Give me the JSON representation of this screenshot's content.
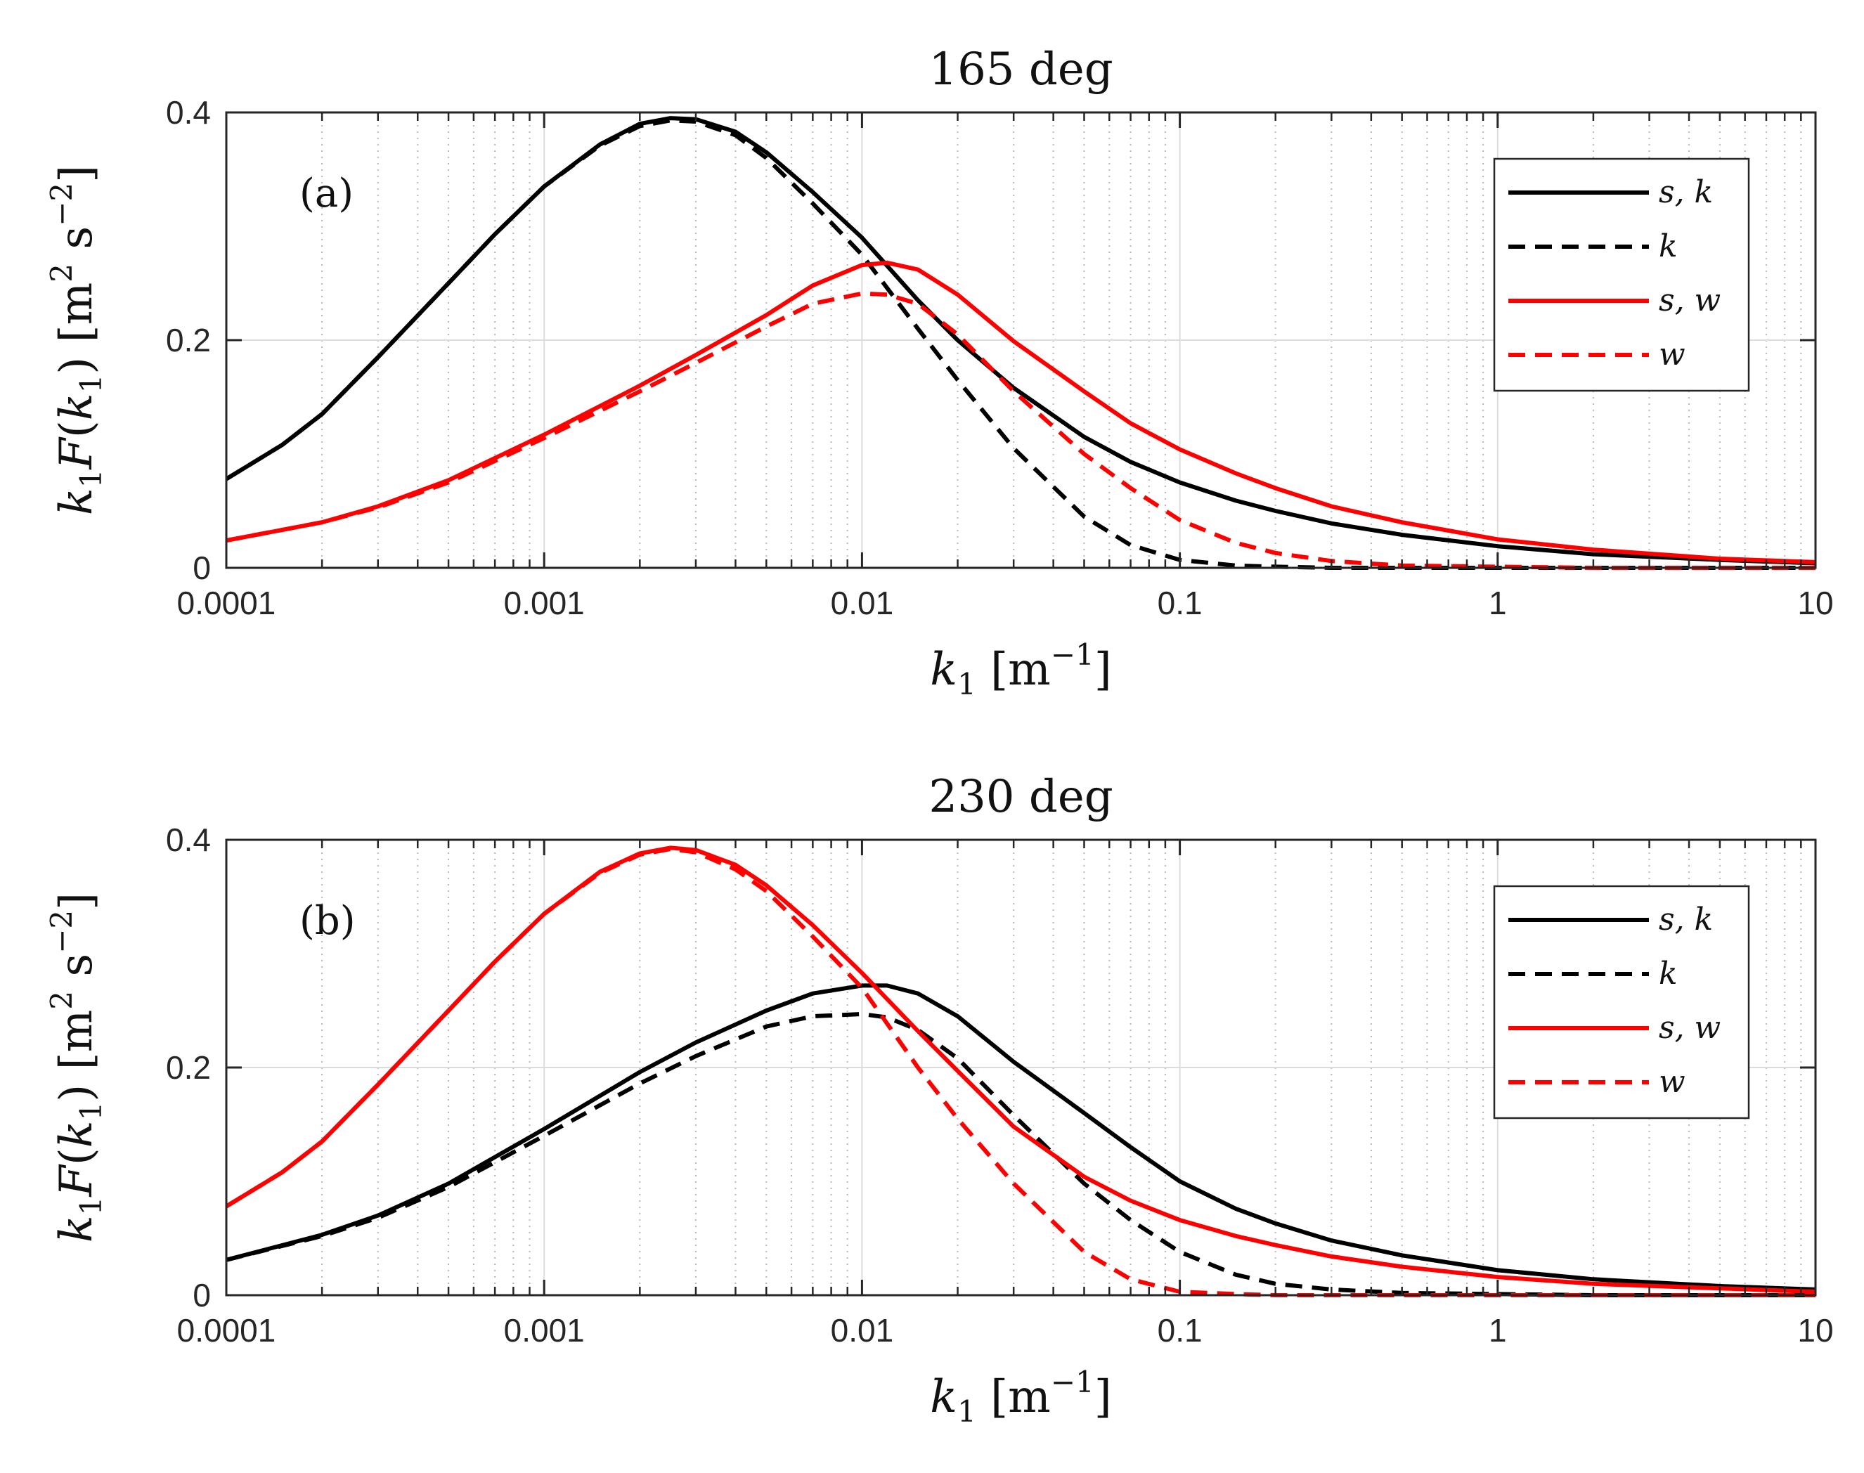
{
  "chart_data": [
    {
      "type": "line",
      "panel_label": "(a)",
      "title": "165 deg",
      "xlabel": "k1 [m^-1]",
      "ylabel": "k1 F(k1) [m^2 s^-2]",
      "xlabel_parts": {
        "var": "k",
        "sub": "1",
        "unit": "[m",
        "unit_exp": "−1",
        "close": "]"
      },
      "ylabel_parts": {
        "var1": "k",
        "sub1": "1",
        "func": "F(k",
        "sub2": "1",
        "close": ")",
        "unit": "[m",
        "exp1": "2",
        "unit2": "s",
        "exp2": "−2",
        "end": "]"
      },
      "xscale": "log",
      "xlim": [
        0.0001,
        10
      ],
      "ylim": [
        0,
        0.4
      ],
      "xticks": [
        0.0001,
        0.001,
        0.01,
        0.1,
        1,
        10
      ],
      "xtick_labels": [
        "0.0001",
        "0.001",
        "0.01",
        "0.1",
        "1",
        "10"
      ],
      "yticks": [
        0,
        0.2,
        0.4
      ],
      "ytick_labels": [
        "0",
        "0.2",
        "0.4"
      ],
      "grid": true,
      "legend_position": "top-right",
      "series": [
        {
          "name": "s, k",
          "color": "#000000",
          "style": "solid",
          "x": [
            0.0001,
            0.00015,
            0.0002,
            0.0003,
            0.0005,
            0.0007,
            0.001,
            0.0015,
            0.002,
            0.0025,
            0.003,
            0.004,
            0.005,
            0.007,
            0.01,
            0.015,
            0.02,
            0.03,
            0.05,
            0.07,
            0.1,
            0.15,
            0.2,
            0.3,
            0.5,
            1,
            2,
            5,
            10
          ],
          "y": [
            0.078,
            0.108,
            0.135,
            0.185,
            0.25,
            0.293,
            0.335,
            0.372,
            0.39,
            0.395,
            0.394,
            0.383,
            0.365,
            0.33,
            0.29,
            0.235,
            0.2,
            0.158,
            0.115,
            0.093,
            0.075,
            0.059,
            0.05,
            0.039,
            0.029,
            0.019,
            0.012,
            0.007,
            0.004
          ]
        },
        {
          "name": "k",
          "color": "#000000",
          "style": "dashed",
          "x": [
            0.0001,
            0.00015,
            0.0002,
            0.0003,
            0.0005,
            0.0007,
            0.001,
            0.0015,
            0.002,
            0.0025,
            0.003,
            0.004,
            0.005,
            0.007,
            0.01,
            0.015,
            0.02,
            0.03,
            0.05,
            0.07,
            0.1,
            0.15,
            0.2,
            0.3,
            0.5,
            1,
            2,
            5,
            10
          ],
          "y": [
            0.078,
            0.108,
            0.135,
            0.185,
            0.25,
            0.293,
            0.335,
            0.371,
            0.388,
            0.393,
            0.392,
            0.38,
            0.36,
            0.32,
            0.275,
            0.21,
            0.165,
            0.105,
            0.045,
            0.02,
            0.007,
            0.002,
            0.001,
            0,
            0,
            0,
            0,
            0,
            0
          ]
        },
        {
          "name": "s, w",
          "color": "#ff0000",
          "style": "solid",
          "x": [
            0.0001,
            0.0002,
            0.0003,
            0.0005,
            0.001,
            0.002,
            0.003,
            0.005,
            0.007,
            0.01,
            0.012,
            0.015,
            0.02,
            0.03,
            0.05,
            0.07,
            0.1,
            0.15,
            0.2,
            0.3,
            0.5,
            1,
            2,
            5,
            10
          ],
          "y": [
            0.024,
            0.04,
            0.054,
            0.077,
            0.117,
            0.16,
            0.187,
            0.222,
            0.248,
            0.266,
            0.268,
            0.262,
            0.24,
            0.199,
            0.155,
            0.127,
            0.104,
            0.083,
            0.07,
            0.054,
            0.04,
            0.025,
            0.016,
            0.008,
            0.005
          ]
        },
        {
          "name": "w",
          "color": "#ff0000",
          "style": "dashed",
          "x": [
            0.0001,
            0.0002,
            0.0003,
            0.0005,
            0.001,
            0.002,
            0.003,
            0.005,
            0.007,
            0.01,
            0.012,
            0.015,
            0.02,
            0.03,
            0.05,
            0.07,
            0.1,
            0.15,
            0.2,
            0.3,
            0.5,
            1,
            2,
            5,
            10
          ],
          "y": [
            0.024,
            0.04,
            0.053,
            0.075,
            0.114,
            0.155,
            0.18,
            0.212,
            0.232,
            0.241,
            0.24,
            0.232,
            0.205,
            0.155,
            0.1,
            0.07,
            0.042,
            0.022,
            0.013,
            0.006,
            0.002,
            0.001,
            0,
            0,
            0
          ]
        }
      ]
    },
    {
      "type": "line",
      "panel_label": "(b)",
      "title": "230 deg",
      "xlabel": "k1 [m^-1]",
      "ylabel": "k1 F(k1) [m^2 s^-2]",
      "xlabel_parts": {
        "var": "k",
        "sub": "1",
        "unit": "[m",
        "unit_exp": "−1",
        "close": "]"
      },
      "ylabel_parts": {
        "var1": "k",
        "sub1": "1",
        "func": "F(k",
        "sub2": "1",
        "close": ")",
        "unit": "[m",
        "exp1": "2",
        "unit2": "s",
        "exp2": "−2",
        "end": "]"
      },
      "xscale": "log",
      "xlim": [
        0.0001,
        10
      ],
      "ylim": [
        0,
        0.4
      ],
      "xticks": [
        0.0001,
        0.001,
        0.01,
        0.1,
        1,
        10
      ],
      "xtick_labels": [
        "0.0001",
        "0.001",
        "0.01",
        "0.1",
        "1",
        "10"
      ],
      "yticks": [
        0,
        0.2,
        0.4
      ],
      "ytick_labels": [
        "0",
        "0.2",
        "0.4"
      ],
      "grid": true,
      "legend_position": "top-right",
      "series": [
        {
          "name": "s, k",
          "color": "#000000",
          "style": "solid",
          "x": [
            0.0001,
            0.0002,
            0.0003,
            0.0005,
            0.001,
            0.002,
            0.003,
            0.005,
            0.007,
            0.01,
            0.012,
            0.015,
            0.02,
            0.03,
            0.05,
            0.07,
            0.1,
            0.15,
            0.2,
            0.3,
            0.5,
            1,
            2,
            5,
            10
          ],
          "y": [
            0.031,
            0.053,
            0.07,
            0.098,
            0.146,
            0.196,
            0.222,
            0.25,
            0.265,
            0.272,
            0.272,
            0.265,
            0.245,
            0.205,
            0.16,
            0.13,
            0.1,
            0.076,
            0.063,
            0.048,
            0.035,
            0.022,
            0.014,
            0.008,
            0.005
          ]
        },
        {
          "name": "k",
          "color": "#000000",
          "style": "dashed",
          "x": [
            0.0001,
            0.0002,
            0.0003,
            0.0005,
            0.001,
            0.002,
            0.003,
            0.005,
            0.007,
            0.01,
            0.012,
            0.015,
            0.02,
            0.03,
            0.05,
            0.07,
            0.1,
            0.15,
            0.2,
            0.3,
            0.5,
            1,
            2,
            5,
            10
          ],
          "y": [
            0.031,
            0.052,
            0.068,
            0.095,
            0.14,
            0.186,
            0.21,
            0.236,
            0.245,
            0.247,
            0.244,
            0.233,
            0.208,
            0.158,
            0.098,
            0.066,
            0.038,
            0.018,
            0.01,
            0.005,
            0.002,
            0.001,
            0,
            0,
            0
          ]
        },
        {
          "name": "s, w",
          "color": "#ff0000",
          "style": "solid",
          "x": [
            0.0001,
            0.00015,
            0.0002,
            0.0003,
            0.0005,
            0.0007,
            0.001,
            0.0015,
            0.002,
            0.0025,
            0.003,
            0.004,
            0.005,
            0.007,
            0.01,
            0.015,
            0.02,
            0.03,
            0.05,
            0.07,
            0.1,
            0.15,
            0.2,
            0.3,
            0.5,
            1,
            2,
            5,
            10
          ],
          "y": [
            0.078,
            0.108,
            0.135,
            0.185,
            0.25,
            0.293,
            0.335,
            0.372,
            0.388,
            0.393,
            0.391,
            0.378,
            0.36,
            0.325,
            0.283,
            0.232,
            0.197,
            0.148,
            0.104,
            0.083,
            0.066,
            0.052,
            0.044,
            0.034,
            0.025,
            0.016,
            0.01,
            0.006,
            0.003
          ]
        },
        {
          "name": "w",
          "color": "#ff0000",
          "style": "dashed",
          "x": [
            0.0001,
            0.00015,
            0.0002,
            0.0003,
            0.0005,
            0.0007,
            0.001,
            0.0015,
            0.002,
            0.0025,
            0.003,
            0.004,
            0.005,
            0.007,
            0.01,
            0.015,
            0.02,
            0.03,
            0.05,
            0.07,
            0.1,
            0.15,
            0.2,
            0.3,
            0.5,
            1,
            2,
            5,
            10
          ],
          "y": [
            0.078,
            0.108,
            0.135,
            0.185,
            0.25,
            0.293,
            0.335,
            0.371,
            0.387,
            0.392,
            0.389,
            0.374,
            0.355,
            0.315,
            0.27,
            0.2,
            0.155,
            0.098,
            0.038,
            0.014,
            0.003,
            0.001,
            0,
            0,
            0,
            0,
            0,
            0,
            0
          ]
        }
      ]
    }
  ]
}
